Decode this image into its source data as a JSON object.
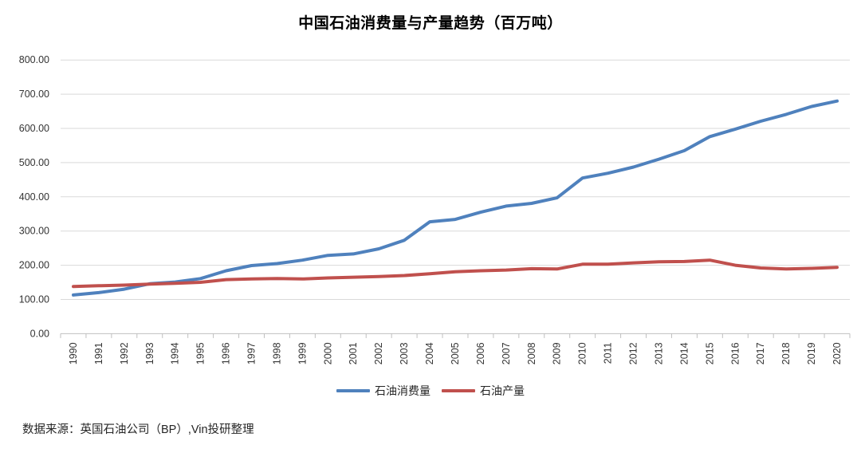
{
  "chart_data": {
    "type": "line",
    "title": "中国石油消费量与产量趋势（百万吨）",
    "categories": [
      "1990",
      "1991",
      "1992",
      "1993",
      "1994",
      "1995",
      "1996",
      "1997",
      "1998",
      "1999",
      "2000",
      "2001",
      "2002",
      "2003",
      "2004",
      "2005",
      "2006",
      "2007",
      "2008",
      "2009",
      "2010",
      "2011",
      "2012",
      "2013",
      "2014",
      "2015",
      "2016",
      "2017",
      "2018",
      "2019",
      "2020"
    ],
    "series": [
      {
        "name": "石油消费量",
        "color": "#4F81BD",
        "values": [
          113,
          120,
          130,
          146,
          151,
          161,
          184,
          199,
          205,
          215,
          229,
          233,
          248,
          273,
          327,
          334,
          355,
          373,
          381,
          397,
          455,
          469,
          487,
          510,
          535,
          576,
          598,
          621,
          641,
          664,
          680
        ]
      },
      {
        "name": "石油产量",
        "color": "#C0504D",
        "values": [
          138,
          140,
          142,
          145,
          147,
          150,
          158,
          160,
          161,
          160,
          163,
          165,
          167,
          170,
          175,
          181,
          184,
          186,
          190,
          189,
          203,
          203,
          207,
          210,
          211,
          215,
          200,
          192,
          189,
          191,
          194
        ]
      }
    ],
    "xlabel": "",
    "ylabel": "",
    "ylim": [
      0,
      800
    ],
    "y_tick_step": 100,
    "y_tick_labels": [
      "0.00",
      "100.00",
      "200.00",
      "300.00",
      "400.00",
      "500.00",
      "600.00",
      "700.00",
      "800.00"
    ],
    "grid": "horizontal",
    "legend_position": "bottom-center",
    "x_label_rotation_deg": -90
  },
  "footer": {
    "source_text": "数据来源：英国石油公司（BP）,Vin投研整理"
  },
  "colors": {
    "consumption_line": "#4F81BD",
    "production_line": "#C0504D",
    "gridline": "#D9D9D9",
    "axis_line": "#BFBFBF",
    "tick_label": "#333333",
    "title_text": "#000000",
    "footer_text": "#262626",
    "background": "#FFFFFF"
  }
}
